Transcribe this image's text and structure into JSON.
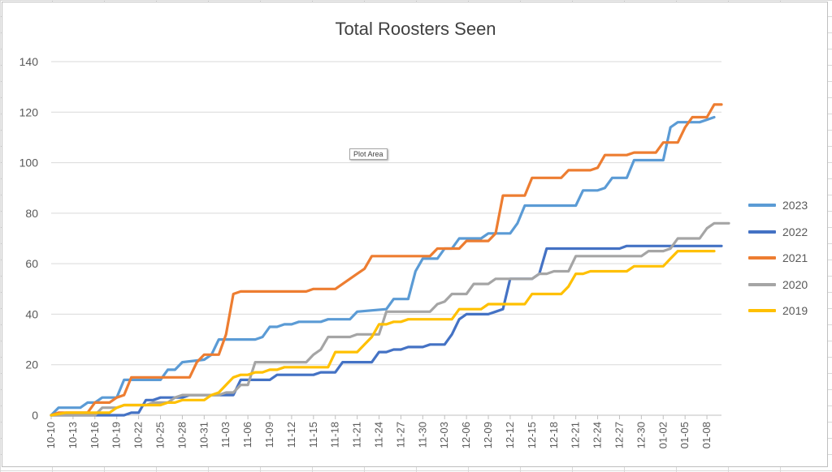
{
  "chart_data": {
    "type": "line",
    "title": "Total Roosters Seen",
    "tooltip": "Plot Area",
    "xlabel": "",
    "ylabel": "",
    "ylim": [
      0,
      140
    ],
    "yticks": [
      0,
      20,
      40,
      60,
      80,
      100,
      120,
      140
    ],
    "grid": true,
    "legend_position": "right",
    "start_label": "10-10",
    "tick_every": 3,
    "x_labels": [
      "10-10",
      "10-13",
      "10-16",
      "10-19",
      "10-22",
      "10-25",
      "10-28",
      "10-31",
      "11-03",
      "11-06",
      "11-09",
      "11-12",
      "11-15",
      "11-18",
      "11-21",
      "11-24",
      "11-27",
      "11-30",
      "12-03",
      "12-06",
      "12-09",
      "12-12",
      "12-15",
      "12-18",
      "12-21",
      "12-24",
      "12-27",
      "12-30",
      "01-02",
      "01-05",
      "01-08"
    ],
    "series": [
      {
        "name": "2023",
        "color": "#5b9bd5",
        "x_end": 92,
        "points": [
          [
            0,
            0
          ],
          [
            1,
            3
          ],
          [
            4,
            3
          ],
          [
            5,
            5
          ],
          [
            6,
            5
          ],
          [
            7,
            7
          ],
          [
            9,
            7
          ],
          [
            10,
            14
          ],
          [
            15,
            14
          ],
          [
            16,
            18
          ],
          [
            17,
            18
          ],
          [
            18,
            21
          ],
          [
            21,
            22
          ],
          [
            22,
            24
          ],
          [
            23,
            30
          ],
          [
            28,
            30
          ],
          [
            29,
            31
          ],
          [
            30,
            35
          ],
          [
            31,
            35
          ],
          [
            32,
            36
          ],
          [
            33,
            36
          ],
          [
            34,
            37
          ],
          [
            37,
            37
          ],
          [
            38,
            38
          ],
          [
            41,
            38
          ],
          [
            42,
            41
          ],
          [
            46,
            42
          ],
          [
            47,
            46
          ],
          [
            49,
            46
          ],
          [
            50,
            57
          ],
          [
            51,
            62
          ],
          [
            53,
            62
          ],
          [
            54,
            66
          ],
          [
            55,
            66
          ],
          [
            56,
            70
          ],
          [
            59,
            70
          ],
          [
            60,
            72
          ],
          [
            63,
            72
          ],
          [
            64,
            76
          ],
          [
            65,
            83
          ],
          [
            72,
            83
          ],
          [
            73,
            89
          ],
          [
            75,
            89
          ],
          [
            76,
            90
          ],
          [
            77,
            94
          ],
          [
            79,
            94
          ],
          [
            80,
            101
          ],
          [
            84,
            101
          ],
          [
            85,
            114
          ],
          [
            86,
            116
          ],
          [
            89,
            116
          ],
          [
            90,
            117
          ],
          [
            91,
            118
          ]
        ]
      },
      {
        "name": "2022",
        "color": "#4472c4",
        "x_end": 92,
        "points": [
          [
            0,
            0
          ],
          [
            10,
            0
          ],
          [
            11,
            1
          ],
          [
            12,
            1
          ],
          [
            13,
            6
          ],
          [
            14,
            6
          ],
          [
            15,
            7
          ],
          [
            16,
            7
          ],
          [
            17,
            7
          ],
          [
            18,
            7
          ],
          [
            19,
            8
          ],
          [
            25,
            8
          ],
          [
            26,
            14
          ],
          [
            30,
            14
          ],
          [
            31,
            16
          ],
          [
            36,
            16
          ],
          [
            37,
            17
          ],
          [
            39,
            17
          ],
          [
            40,
            21
          ],
          [
            44,
            21
          ],
          [
            45,
            25
          ],
          [
            46,
            25
          ],
          [
            47,
            26
          ],
          [
            48,
            26
          ],
          [
            49,
            27
          ],
          [
            51,
            27
          ],
          [
            52,
            28
          ],
          [
            54,
            28
          ],
          [
            55,
            32
          ],
          [
            56,
            38
          ],
          [
            57,
            40
          ],
          [
            60,
            40
          ],
          [
            61,
            41
          ],
          [
            62,
            42
          ],
          [
            63,
            54
          ],
          [
            66,
            54
          ],
          [
            67,
            56
          ],
          [
            68,
            66
          ],
          [
            78,
            66
          ],
          [
            79,
            67
          ],
          [
            92,
            67
          ]
        ]
      },
      {
        "name": "2021",
        "color": "#ed7d31",
        "x_end": 91,
        "points": [
          [
            0,
            0
          ],
          [
            1,
            1
          ],
          [
            5,
            1
          ],
          [
            6,
            5
          ],
          [
            8,
            5
          ],
          [
            9,
            7
          ],
          [
            10,
            8
          ],
          [
            11,
            15
          ],
          [
            19,
            15
          ],
          [
            20,
            21
          ],
          [
            21,
            24
          ],
          [
            23,
            24
          ],
          [
            24,
            32
          ],
          [
            25,
            48
          ],
          [
            26,
            49
          ],
          [
            35,
            49
          ],
          [
            36,
            50
          ],
          [
            39,
            50
          ],
          [
            40,
            52
          ],
          [
            42,
            56
          ],
          [
            43,
            58
          ],
          [
            44,
            63
          ],
          [
            52,
            63
          ],
          [
            53,
            66
          ],
          [
            56,
            66
          ],
          [
            57,
            69
          ],
          [
            60,
            69
          ],
          [
            61,
            72
          ],
          [
            62,
            87
          ],
          [
            65,
            87
          ],
          [
            66,
            94
          ],
          [
            70,
            94
          ],
          [
            71,
            97
          ],
          [
            74,
            97
          ],
          [
            75,
            98
          ],
          [
            76,
            103
          ],
          [
            79,
            103
          ],
          [
            80,
            104
          ],
          [
            83,
            104
          ],
          [
            84,
            108
          ],
          [
            86,
            108
          ],
          [
            87,
            114
          ],
          [
            88,
            118
          ],
          [
            90,
            118
          ],
          [
            91,
            123
          ],
          [
            92,
            123
          ]
        ]
      },
      {
        "name": "2020",
        "color": "#a5a5a5",
        "x_end": 91,
        "points": [
          [
            0,
            0
          ],
          [
            6,
            0
          ],
          [
            7,
            3
          ],
          [
            9,
            3
          ],
          [
            10,
            4
          ],
          [
            13,
            4
          ],
          [
            14,
            5
          ],
          [
            16,
            5
          ],
          [
            17,
            7
          ],
          [
            18,
            8
          ],
          [
            23,
            8
          ],
          [
            24,
            9
          ],
          [
            25,
            9
          ],
          [
            26,
            12
          ],
          [
            27,
            12
          ],
          [
            28,
            21
          ],
          [
            33,
            21
          ],
          [
            34,
            21
          ],
          [
            35,
            21
          ],
          [
            36,
            24
          ],
          [
            37,
            26
          ],
          [
            38,
            31
          ],
          [
            41,
            31
          ],
          [
            42,
            32
          ],
          [
            44,
            32
          ],
          [
            45,
            32
          ],
          [
            46,
            41
          ],
          [
            52,
            41
          ],
          [
            53,
            44
          ],
          [
            54,
            45
          ],
          [
            55,
            48
          ],
          [
            57,
            48
          ],
          [
            58,
            52
          ],
          [
            60,
            52
          ],
          [
            61,
            54
          ],
          [
            66,
            54
          ],
          [
            67,
            56
          ],
          [
            68,
            56
          ],
          [
            69,
            57
          ],
          [
            71,
            57
          ],
          [
            72,
            63
          ],
          [
            81,
            63
          ],
          [
            82,
            65
          ],
          [
            84,
            65
          ],
          [
            85,
            66
          ],
          [
            86,
            70
          ],
          [
            89,
            70
          ],
          [
            90,
            74
          ],
          [
            91,
            76
          ],
          [
            93,
            76
          ]
        ]
      },
      {
        "name": "2019",
        "color": "#ffc000",
        "x_end": 91,
        "points": [
          [
            0,
            0
          ],
          [
            2,
            1
          ],
          [
            6,
            1
          ],
          [
            7,
            1
          ],
          [
            8,
            1
          ],
          [
            9,
            3
          ],
          [
            10,
            4
          ],
          [
            11,
            4
          ],
          [
            13,
            4
          ],
          [
            14,
            4
          ],
          [
            15,
            4
          ],
          [
            16,
            5
          ],
          [
            17,
            5
          ],
          [
            18,
            6
          ],
          [
            20,
            6
          ],
          [
            21,
            6
          ],
          [
            22,
            8
          ],
          [
            23,
            9
          ],
          [
            24,
            12
          ],
          [
            25,
            15
          ],
          [
            26,
            16
          ],
          [
            27,
            16
          ],
          [
            28,
            17
          ],
          [
            29,
            17
          ],
          [
            30,
            18
          ],
          [
            31,
            18
          ],
          [
            32,
            19
          ],
          [
            38,
            19
          ],
          [
            39,
            25
          ],
          [
            42,
            25
          ],
          [
            43,
            28
          ],
          [
            44,
            31
          ],
          [
            45,
            36
          ],
          [
            46,
            36
          ],
          [
            47,
            37
          ],
          [
            48,
            37
          ],
          [
            49,
            38
          ],
          [
            54,
            38
          ],
          [
            55,
            38
          ],
          [
            56,
            42
          ],
          [
            59,
            42
          ],
          [
            60,
            44
          ],
          [
            64,
            44
          ],
          [
            65,
            44
          ],
          [
            66,
            48
          ],
          [
            69,
            48
          ],
          [
            70,
            48
          ],
          [
            71,
            51
          ],
          [
            72,
            56
          ],
          [
            73,
            56
          ],
          [
            74,
            57
          ],
          [
            79,
            57
          ],
          [
            80,
            59
          ],
          [
            83,
            59
          ],
          [
            84,
            59
          ],
          [
            85,
            62
          ],
          [
            86,
            65
          ],
          [
            91,
            65
          ]
        ]
      }
    ]
  }
}
